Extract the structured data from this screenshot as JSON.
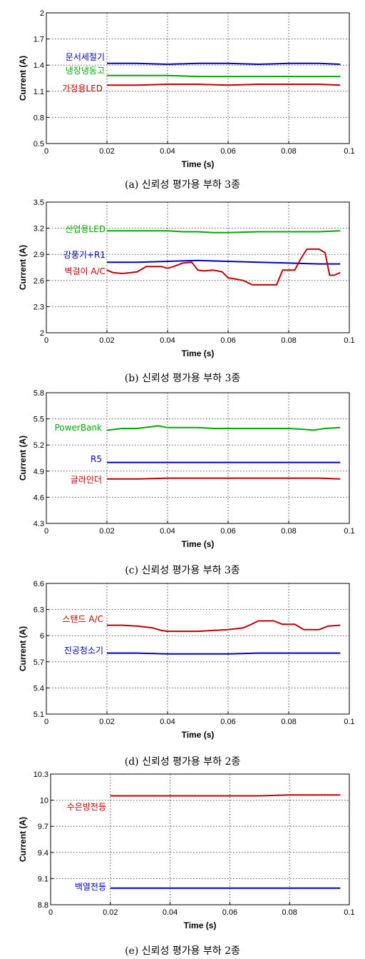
{
  "chart_data": [
    {
      "type": "line",
      "caption": "(a) 신뢰성 평가용 부하 3종",
      "xlabel": "Time (s)",
      "ylabel": "Current (A)",
      "xlim": [
        0,
        0.1
      ],
      "ylim": [
        0.5,
        2
      ],
      "xticks": [
        "0",
        "0.02",
        "0.04",
        "0.06",
        "0.08",
        "0.1"
      ],
      "yticks": [
        "0.5",
        "0.8",
        "1.1",
        "1.4",
        "1.7",
        "2"
      ],
      "grid": true,
      "series": [
        {
          "name": "문서세절기",
          "color": "#0000c0",
          "x": [
            0.02,
            0.03,
            0.04,
            0.05,
            0.06,
            0.07,
            0.08,
            0.09,
            0.097
          ],
          "y": [
            1.42,
            1.42,
            1.41,
            1.42,
            1.42,
            1.41,
            1.42,
            1.42,
            1.41
          ]
        },
        {
          "name": "냉장냉동고",
          "color": "#00aa00",
          "x": [
            0.02,
            0.03,
            0.04,
            0.05,
            0.06,
            0.07,
            0.08,
            0.09,
            0.097
          ],
          "y": [
            1.28,
            1.28,
            1.28,
            1.27,
            1.27,
            1.27,
            1.27,
            1.27,
            1.27
          ]
        },
        {
          "name": "가정용LED",
          "color": "#c00000",
          "x": [
            0.02,
            0.03,
            0.04,
            0.05,
            0.06,
            0.07,
            0.08,
            0.09,
            0.097
          ],
          "y": [
            1.17,
            1.17,
            1.18,
            1.18,
            1.17,
            1.18,
            1.18,
            1.18,
            1.17
          ]
        }
      ]
    },
    {
      "type": "line",
      "caption": "(b) 신뢰성 평가용 부하 3종",
      "xlabel": "Time (s)",
      "ylabel": "Current (A)",
      "xlim": [
        0,
        0.1
      ],
      "ylim": [
        2,
        3.5
      ],
      "xticks": [
        "0",
        "0.02",
        "0.04",
        "0.06",
        "0.08",
        "0.1"
      ],
      "yticks": [
        "2",
        "2.3",
        "2.6",
        "2.9",
        "3.2",
        "3.5"
      ],
      "grid": true,
      "series": [
        {
          "name": "산업용LED",
          "color": "#00aa00",
          "x": [
            0.02,
            0.03,
            0.04,
            0.045,
            0.05,
            0.055,
            0.06,
            0.07,
            0.08,
            0.09,
            0.097
          ],
          "y": [
            3.17,
            3.17,
            3.17,
            3.16,
            3.16,
            3.15,
            3.15,
            3.16,
            3.16,
            3.16,
            3.17
          ]
        },
        {
          "name": "강풍기+R1",
          "color": "#0000c0",
          "x": [
            0.02,
            0.03,
            0.04,
            0.05,
            0.06,
            0.07,
            0.08,
            0.09,
            0.097
          ],
          "y": [
            2.81,
            2.81,
            2.82,
            2.83,
            2.82,
            2.81,
            2.8,
            2.79,
            2.79
          ]
        },
        {
          "name": "벽걸이 A/C",
          "color": "#c00000",
          "x": [
            0.02,
            0.022,
            0.025,
            0.028,
            0.03,
            0.033,
            0.035,
            0.038,
            0.04,
            0.042,
            0.045,
            0.048,
            0.05,
            0.052,
            0.055,
            0.058,
            0.06,
            0.062,
            0.065,
            0.068,
            0.07,
            0.073,
            0.076,
            0.078,
            0.08,
            0.082,
            0.084,
            0.086,
            0.088,
            0.09,
            0.092,
            0.0935,
            0.095,
            0.097
          ],
          "y": [
            2.72,
            2.69,
            2.68,
            2.69,
            2.7,
            2.76,
            2.76,
            2.76,
            2.74,
            2.76,
            2.8,
            2.81,
            2.72,
            2.71,
            2.72,
            2.7,
            2.63,
            2.62,
            2.6,
            2.55,
            2.55,
            2.55,
            2.55,
            2.72,
            2.72,
            2.72,
            2.85,
            2.96,
            2.96,
            2.96,
            2.92,
            2.66,
            2.66,
            2.69
          ]
        }
      ]
    },
    {
      "type": "line",
      "caption": "(c) 신뢰성 평가용 부하 3종",
      "xlabel": "Time (s)",
      "ylabel": "Current (A)",
      "xlim": [
        0,
        0.1
      ],
      "ylim": [
        4.3,
        5.8
      ],
      "xticks": [
        "0",
        "0.02",
        "0.04",
        "0.06",
        "0.08",
        "0.1"
      ],
      "yticks": [
        "4.3",
        "4.6",
        "4.9",
        "5.2",
        "5.5",
        "5.8"
      ],
      "grid": true,
      "series": [
        {
          "name": "PowerBank",
          "color": "#00aa00",
          "x": [
            0.02,
            0.025,
            0.03,
            0.037,
            0.04,
            0.045,
            0.05,
            0.055,
            0.06,
            0.065,
            0.07,
            0.075,
            0.08,
            0.085,
            0.088,
            0.092,
            0.097
          ],
          "y": [
            5.37,
            5.39,
            5.39,
            5.42,
            5.4,
            5.4,
            5.4,
            5.39,
            5.39,
            5.39,
            5.39,
            5.39,
            5.39,
            5.38,
            5.37,
            5.39,
            5.4
          ]
        },
        {
          "name": "R5",
          "color": "#0000c0",
          "x": [
            0.02,
            0.04,
            0.06,
            0.08,
            0.097
          ],
          "y": [
            5.0,
            5.0,
            5.0,
            5.0,
            5.0
          ]
        },
        {
          "name": "글라인더",
          "color": "#c00000",
          "x": [
            0.02,
            0.03,
            0.04,
            0.05,
            0.06,
            0.07,
            0.08,
            0.09,
            0.097
          ],
          "y": [
            4.81,
            4.81,
            4.82,
            4.82,
            4.82,
            4.82,
            4.82,
            4.82,
            4.81
          ]
        }
      ]
    },
    {
      "type": "line",
      "caption": "(d) 신뢰성 평가용 부하 2종",
      "xlabel": "Time (s)",
      "ylabel": "Current (A)",
      "xlim": [
        0,
        0.1
      ],
      "ylim": [
        5.1,
        6.6
      ],
      "xticks": [
        "0",
        "0.02",
        "0.04",
        "0.06",
        "0.08",
        "0.1"
      ],
      "yticks": [
        "5.1",
        "5.4",
        "5.7",
        "6",
        "6.3",
        "6.6"
      ],
      "grid": true,
      "series": [
        {
          "name": "스탠드 A/C",
          "color": "#c00000",
          "x": [
            0.02,
            0.025,
            0.03,
            0.035,
            0.038,
            0.04,
            0.045,
            0.05,
            0.055,
            0.06,
            0.065,
            0.067,
            0.07,
            0.072,
            0.075,
            0.078,
            0.08,
            0.082,
            0.085,
            0.088,
            0.09,
            0.093,
            0.097
          ],
          "y": [
            6.12,
            6.12,
            6.11,
            6.09,
            6.06,
            6.05,
            6.05,
            6.05,
            6.06,
            6.07,
            6.09,
            6.12,
            6.17,
            6.17,
            6.17,
            6.13,
            6.13,
            6.13,
            6.07,
            6.07,
            6.07,
            6.11,
            6.12
          ]
        },
        {
          "name": "진공청소기",
          "color": "#0000c0",
          "x": [
            0.02,
            0.03,
            0.04,
            0.05,
            0.06,
            0.07,
            0.08,
            0.09,
            0.097
          ],
          "y": [
            5.8,
            5.8,
            5.79,
            5.79,
            5.79,
            5.8,
            5.8,
            5.8,
            5.8
          ]
        }
      ]
    },
    {
      "type": "line",
      "caption": "(e) 신뢰성 평가용 부하 2종",
      "xlabel": "Time (s)",
      "ylabel": "Current (A)",
      "xlim": [
        0,
        0.1
      ],
      "ylim": [
        8.8,
        10.3
      ],
      "xticks": [
        "0",
        "0.02",
        "0.04",
        "0.06",
        "0.08",
        "0.1"
      ],
      "yticks": [
        "8.8",
        "9.1",
        "9.4",
        "9.7",
        "10",
        "10.3"
      ],
      "grid": true,
      "series": [
        {
          "name": "수은방전등",
          "color": "#c00000",
          "x": [
            0.02,
            0.03,
            0.04,
            0.05,
            0.06,
            0.07,
            0.08,
            0.09,
            0.097
          ],
          "y": [
            10.05,
            10.05,
            10.05,
            10.05,
            10.05,
            10.05,
            10.06,
            10.06,
            10.06
          ]
        },
        {
          "name": "백열전등",
          "color": "#0000c0",
          "x": [
            0.02,
            0.03,
            0.04,
            0.05,
            0.06,
            0.07,
            0.08,
            0.09,
            0.097
          ],
          "y": [
            8.99,
            8.99,
            8.99,
            8.99,
            8.99,
            8.99,
            8.99,
            8.99,
            8.99
          ]
        }
      ]
    }
  ]
}
